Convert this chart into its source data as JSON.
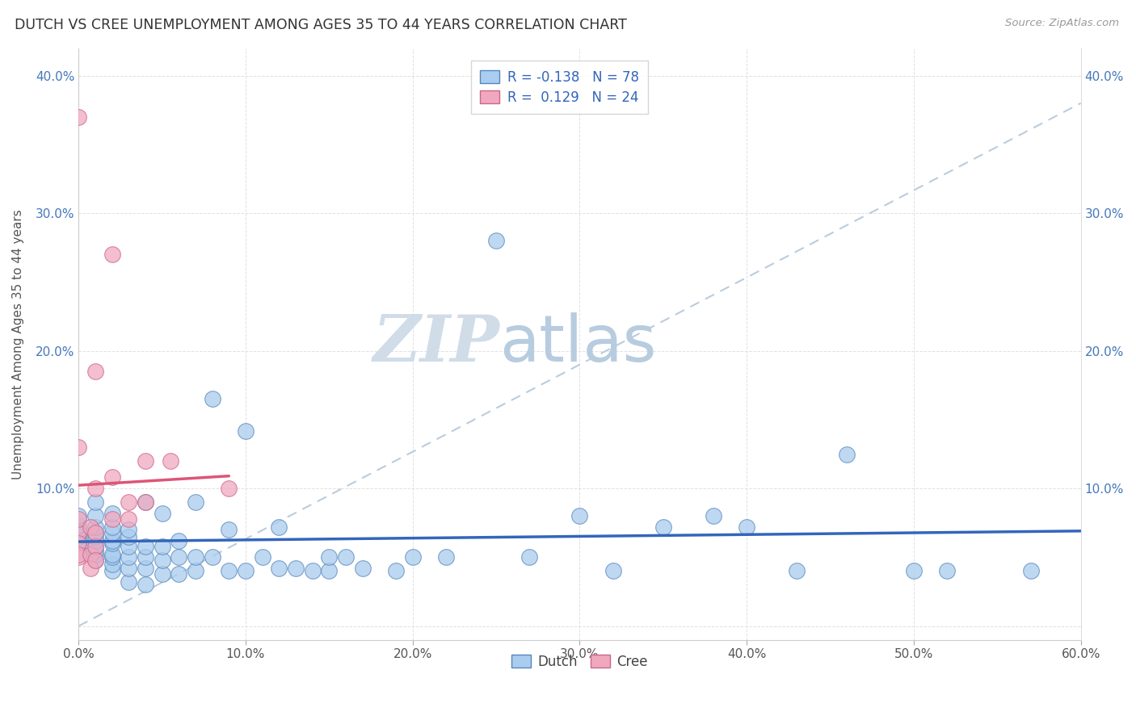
{
  "title": "DUTCH VS CREE UNEMPLOYMENT AMONG AGES 35 TO 44 YEARS CORRELATION CHART",
  "source": "Source: ZipAtlas.com",
  "ylabel": "Unemployment Among Ages 35 to 44 years",
  "xlim": [
    0.0,
    0.6
  ],
  "ylim": [
    -0.01,
    0.42
  ],
  "xticks": [
    0.0,
    0.1,
    0.2,
    0.3,
    0.4,
    0.5,
    0.6
  ],
  "yticks": [
    0.0,
    0.1,
    0.2,
    0.3,
    0.4
  ],
  "dutch_color": "#aaccee",
  "cree_color": "#f0a8bf",
  "dutch_edge_color": "#5588bb",
  "cree_edge_color": "#cc6688",
  "dutch_line_color": "#3366bb",
  "cree_line_color": "#dd5577",
  "trendline_dashed_color": "#bbccdd",
  "R_dutch": -0.138,
  "N_dutch": 78,
  "R_cree": 0.129,
  "N_cree": 24,
  "watermark_zip": "ZIP",
  "watermark_atlas": "atlas",
  "watermark_color_zip": "#d0dce8",
  "watermark_color_atlas": "#b8cce0",
  "dutch_x": [
    0.0,
    0.0,
    0.0,
    0.0,
    0.0,
    0.0,
    0.0,
    0.0,
    0.01,
    0.01,
    0.01,
    0.01,
    0.01,
    0.01,
    0.01,
    0.01,
    0.01,
    0.01,
    0.02,
    0.02,
    0.02,
    0.02,
    0.02,
    0.02,
    0.02,
    0.02,
    0.02,
    0.03,
    0.03,
    0.03,
    0.03,
    0.03,
    0.03,
    0.04,
    0.04,
    0.04,
    0.04,
    0.04,
    0.05,
    0.05,
    0.05,
    0.05,
    0.06,
    0.06,
    0.06,
    0.07,
    0.07,
    0.07,
    0.08,
    0.08,
    0.09,
    0.09,
    0.1,
    0.1,
    0.11,
    0.12,
    0.12,
    0.13,
    0.14,
    0.15,
    0.15,
    0.16,
    0.17,
    0.19,
    0.2,
    0.22,
    0.25,
    0.27,
    0.3,
    0.32,
    0.35,
    0.38,
    0.4,
    0.43,
    0.46,
    0.5,
    0.52,
    0.57
  ],
  "dutch_y": [
    0.055,
    0.06,
    0.062,
    0.065,
    0.068,
    0.07,
    0.073,
    0.08,
    0.048,
    0.052,
    0.055,
    0.058,
    0.062,
    0.065,
    0.068,
    0.072,
    0.08,
    0.09,
    0.04,
    0.045,
    0.05,
    0.052,
    0.06,
    0.062,
    0.068,
    0.072,
    0.082,
    0.032,
    0.042,
    0.05,
    0.058,
    0.065,
    0.07,
    0.03,
    0.042,
    0.05,
    0.058,
    0.09,
    0.038,
    0.048,
    0.058,
    0.082,
    0.038,
    0.05,
    0.062,
    0.04,
    0.05,
    0.09,
    0.05,
    0.165,
    0.04,
    0.07,
    0.04,
    0.142,
    0.05,
    0.042,
    0.072,
    0.042,
    0.04,
    0.04,
    0.05,
    0.05,
    0.042,
    0.04,
    0.05,
    0.05,
    0.28,
    0.05,
    0.08,
    0.04,
    0.072,
    0.08,
    0.072,
    0.04,
    0.125,
    0.04,
    0.04,
    0.04
  ],
  "cree_x": [
    0.0,
    0.0,
    0.0,
    0.0,
    0.0,
    0.0,
    0.0,
    0.007,
    0.007,
    0.007,
    0.01,
    0.01,
    0.01,
    0.01,
    0.01,
    0.02,
    0.02,
    0.02,
    0.03,
    0.03,
    0.04,
    0.04,
    0.055,
    0.09
  ],
  "cree_y": [
    0.37,
    0.13,
    0.068,
    0.06,
    0.05,
    0.078,
    0.052,
    0.072,
    0.052,
    0.042,
    0.185,
    0.1,
    0.068,
    0.058,
    0.048,
    0.27,
    0.108,
    0.078,
    0.09,
    0.078,
    0.12,
    0.09,
    0.12,
    0.1
  ]
}
